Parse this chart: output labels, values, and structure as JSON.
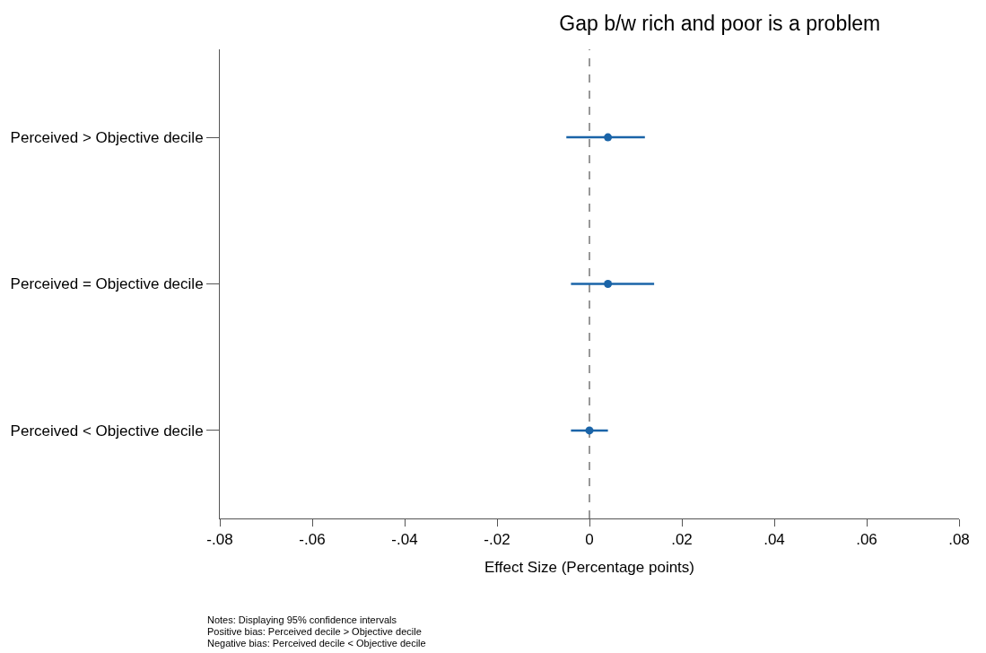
{
  "chart_data": {
    "type": "scatter",
    "orientation": "horizontal",
    "title": "Gap b/w rich and poor is a problem",
    "xlabel": "Effect Size (Percentage points)",
    "categories": [
      "Perceived > Objective decile",
      "Perceived = Objective decile",
      "Perceived < Objective decile"
    ],
    "values": [
      0.004,
      0.004,
      0.0
    ],
    "errors": [
      [
        -0.005,
        0.012
      ],
      [
        -0.004,
        0.014
      ],
      [
        -0.004,
        0.004
      ]
    ],
    "color": "#1a64a8",
    "marker": "circle",
    "xlim": [
      -0.08,
      0.08
    ],
    "xticks": [
      {
        "value": -0.08,
        "label": "-.08"
      },
      {
        "value": -0.06,
        "label": "-.06"
      },
      {
        "value": -0.04,
        "label": "-.04"
      },
      {
        "value": -0.02,
        "label": "-.02"
      },
      0,
      {
        "value": 0.02,
        "label": ".02"
      },
      {
        "value": 0.04,
        "label": ".04"
      },
      {
        "value": 0.06,
        "label": ".06"
      },
      {
        "value": 0.08,
        "label": ".08"
      }
    ],
    "ref_lines": [
      {
        "axis": "x",
        "value": 0,
        "color": "#555555",
        "line_style": "dashed"
      }
    ],
    "grid": false,
    "annotations": [
      "Notes: Displaying 95% confidence intervals",
      "Positive bias: Perceived decile > Objective decile",
      "Negative bias: Perceived decile < Objective decile"
    ]
  }
}
